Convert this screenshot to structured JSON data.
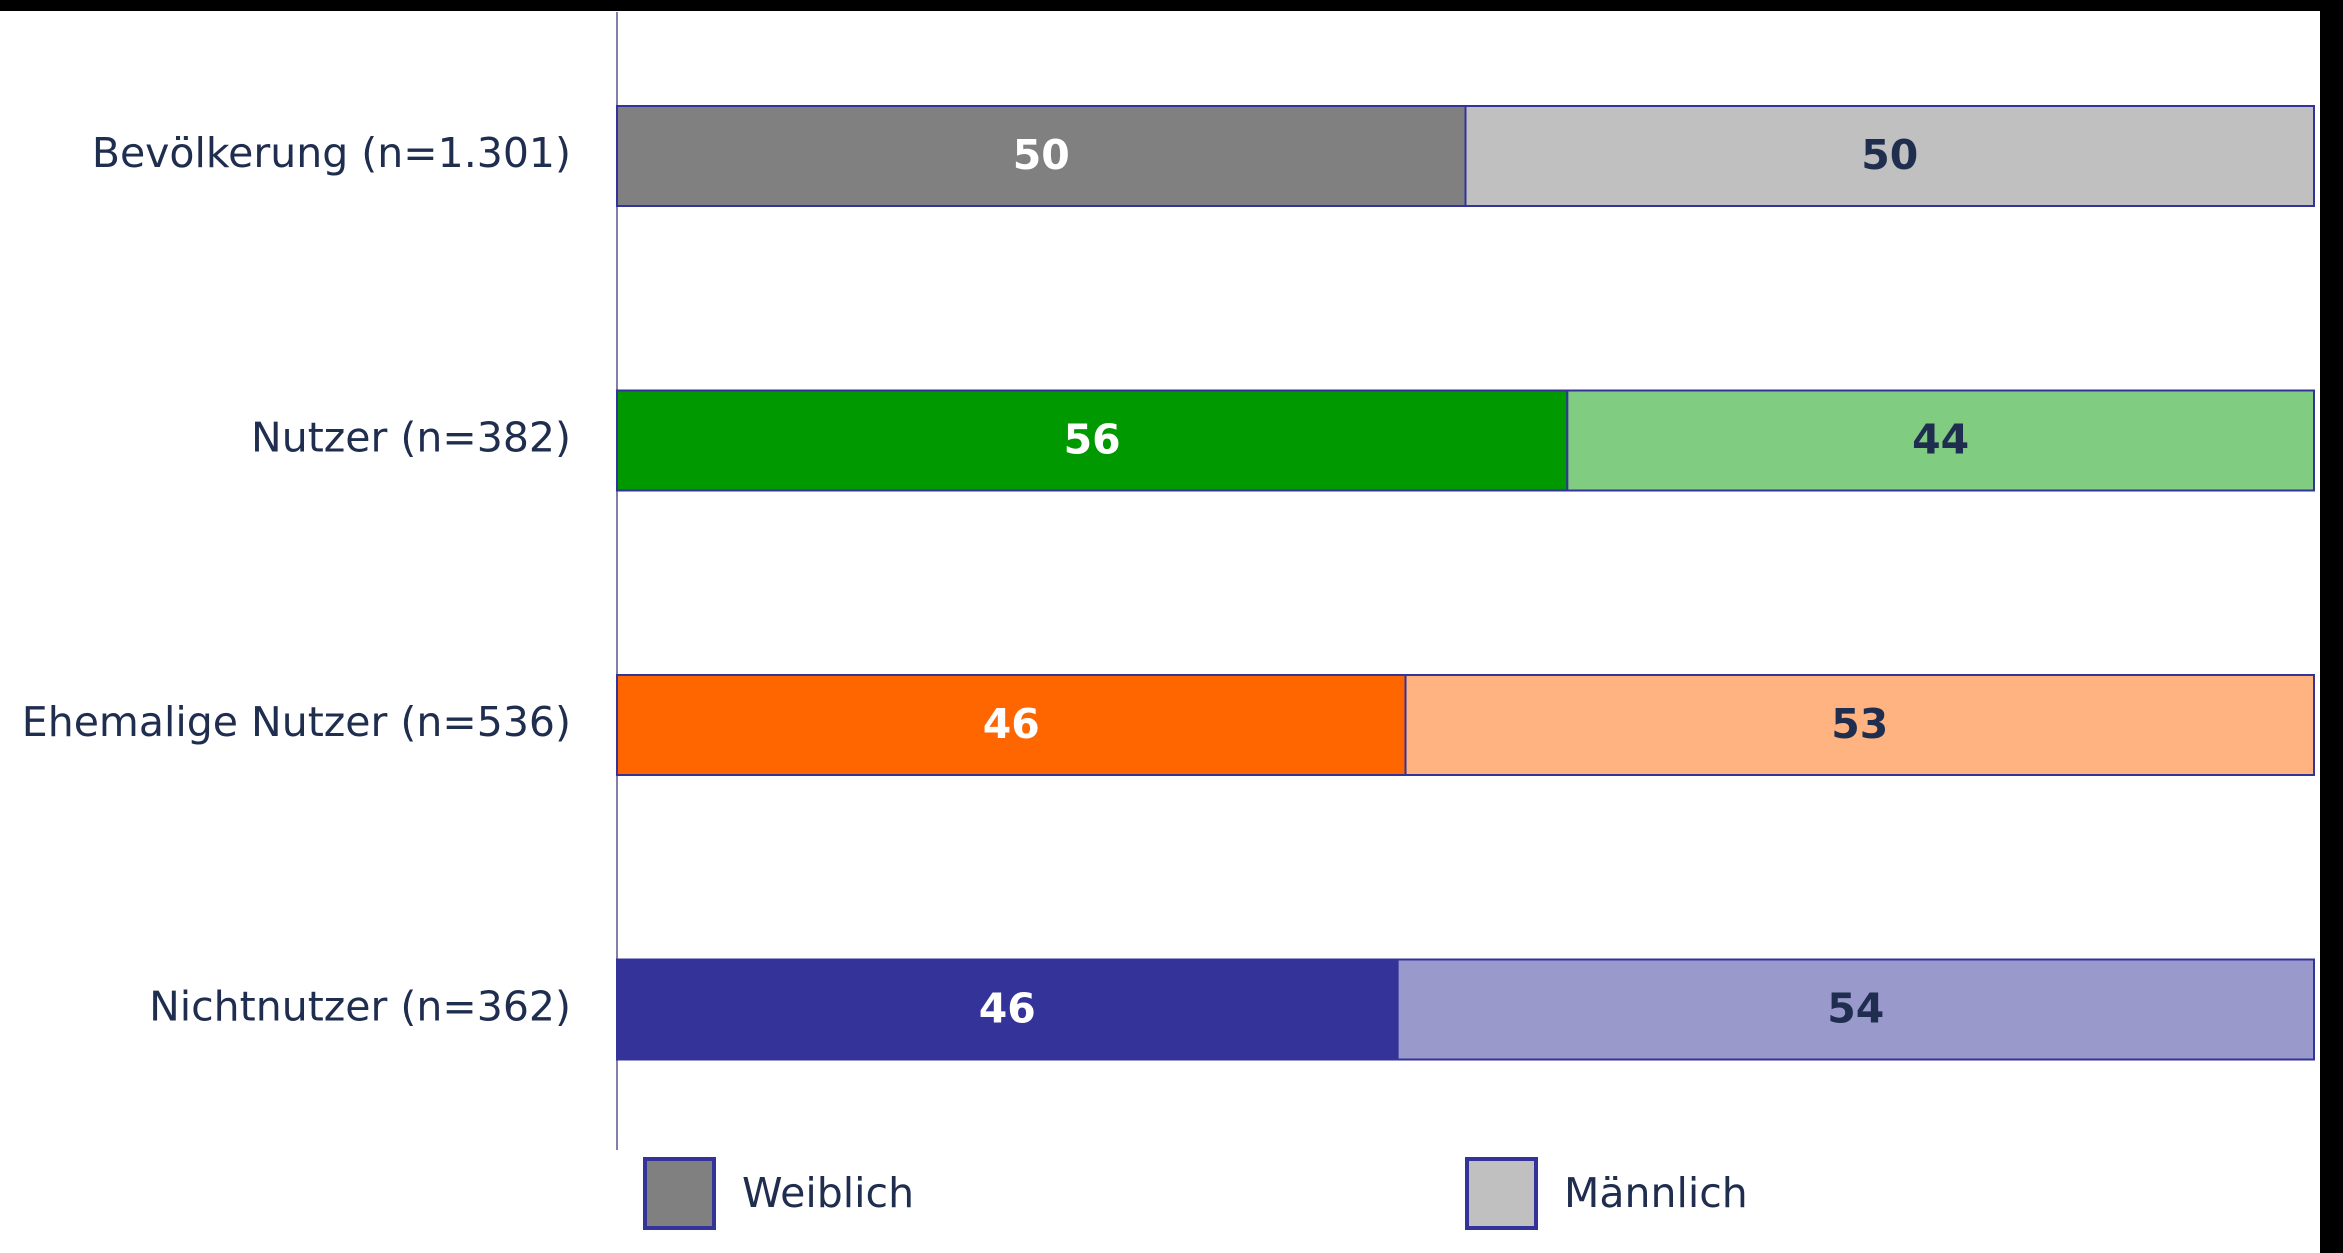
{
  "chart_data": {
    "type": "bar",
    "orientation": "horizontal",
    "stack": "percent",
    "categories": [
      "Bevölkerung (n=1.301)",
      "Nutzer (n=382)",
      "Ehemalige Nutzer (n=536)",
      "Nichtnutzer (n=362)"
    ],
    "series": [
      {
        "name": "Weiblich",
        "color": "#808080",
        "colors": [
          "#808080",
          "#009900",
          "#ff6600",
          "#333399"
        ],
        "values": [
          50,
          56,
          46,
          46
        ]
      },
      {
        "name": "Männlich",
        "color": "#c0c0c0",
        "colors": [
          "#c0c0c0",
          "#80cc80",
          "#ffb380",
          "#9999cc"
        ],
        "values": [
          50,
          44,
          53,
          54
        ]
      }
    ]
  }
}
